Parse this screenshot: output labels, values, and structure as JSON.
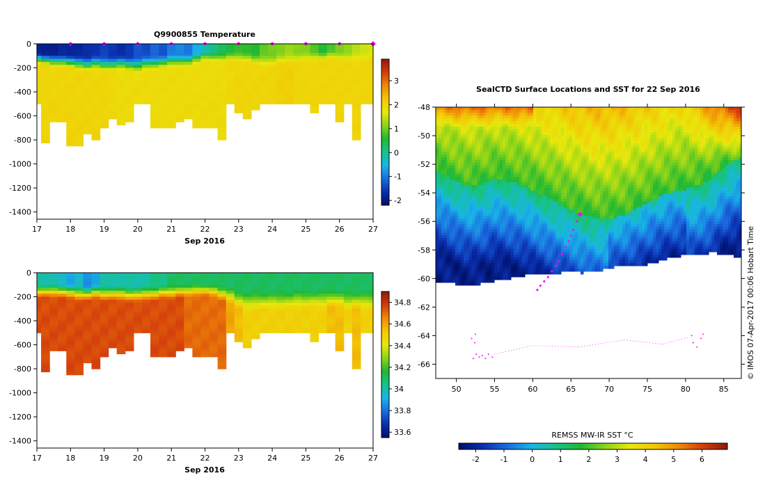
{
  "colors": {
    "temp_ramp": [
      "#000f66",
      "#0a2fae",
      "#1b6ee0",
      "#19b5e6",
      "#17c28a",
      "#22b832",
      "#8cd41a",
      "#e8e80c",
      "#f2c806",
      "#f08a08",
      "#d33c0c",
      "#8e1a0a"
    ],
    "marker": "#ff00ff",
    "land": "#ffffff"
  },
  "chart_data": [
    {
      "type": "heatmap",
      "id": "temperature",
      "title": "Q9900855  Temperature",
      "xlabel": "Sep 2016",
      "ylabel": "",
      "x_ticks": [
        "17",
        "18",
        "19",
        "20",
        "21",
        "22",
        "23",
        "24",
        "25",
        "26",
        "27"
      ],
      "xlim": [
        17,
        27
      ],
      "y_ticks": [
        "0",
        "-200",
        "-400",
        "-600",
        "-800",
        "-1000",
        "-1200",
        "-1400"
      ],
      "ylim": [
        -1460,
        0
      ],
      "colorbar_ticks": [
        "-2",
        "-1",
        "0",
        "1",
        "2",
        "3"
      ],
      "colorbar_range": [
        -2.2,
        3.9
      ],
      "profile_days": [
        17,
        17.25,
        17.5,
        17.75,
        18,
        18.25,
        18.5,
        18.75,
        19,
        19.25,
        19.5,
        19.75,
        20,
        20.25,
        20.5,
        20.75,
        21,
        21.25,
        21.5,
        21.75,
        22,
        22.25,
        22.5,
        22.75,
        23,
        23.25,
        23.5,
        23.75,
        24,
        24.25,
        24.5,
        24.75,
        25,
        25.25,
        25.5,
        25.75,
        26,
        26.25,
        26.5,
        26.75,
        27
      ],
      "max_depth_m": [
        500,
        820,
        640,
        640,
        840,
        840,
        730,
        800,
        690,
        610,
        660,
        640,
        500,
        500,
        700,
        700,
        680,
        650,
        620,
        680,
        680,
        680,
        800,
        500,
        570,
        610,
        550,
        500,
        500,
        500,
        500,
        500,
        500,
        570,
        500,
        500,
        650,
        500,
        800,
        500,
        500
      ],
      "surface_temp": [
        -1.9,
        -1.9,
        -1.9,
        -1.8,
        -1.8,
        -1.8,
        -1.7,
        -1.6,
        -1.5,
        -1.6,
        -1.7,
        -1.6,
        -1.3,
        -1.4,
        -1.2,
        -1.3,
        -1.0,
        -0.9,
        -1.0,
        -0.6,
        -0.2,
        0.1,
        0.3,
        0.5,
        0.7,
        0.6,
        0.6,
        0.9,
        1.0,
        1.1,
        1.2,
        1.1,
        1.1,
        0.8,
        0.6,
        0.8,
        1.0,
        1.2,
        1.4,
        1.5,
        1.6
      ],
      "deep_temp": [
        2.0,
        2.0,
        2.0,
        2.0,
        2.0,
        2.0,
        2.0,
        2.0,
        2.0,
        1.95,
        1.9,
        1.9,
        1.9,
        1.9,
        1.9,
        1.9,
        1.9,
        1.9,
        1.9,
        1.9,
        1.9,
        1.9,
        1.9,
        1.95,
        2.0,
        2.0,
        2.0,
        2.0,
        2.0,
        2.1,
        2.1,
        2.0,
        2.0,
        2.0,
        2.0,
        2.0,
        2.0,
        2.0,
        2.0,
        2.0,
        2.0
      ],
      "mixed_layer_depth_m": [
        130,
        140,
        150,
        150,
        160,
        170,
        180,
        170,
        180,
        180,
        170,
        180,
        190,
        170,
        170,
        160,
        150,
        150,
        150,
        130,
        110,
        120,
        120,
        110,
        120,
        120,
        140,
        150,
        150,
        140,
        130,
        120,
        120,
        110,
        110,
        100,
        110,
        120,
        120,
        110,
        100
      ],
      "markers_day": [
        18,
        19,
        20,
        21,
        22,
        23,
        24,
        25,
        26,
        27
      ]
    },
    {
      "type": "heatmap",
      "id": "salinity",
      "title": "",
      "xlabel": "Sep 2016",
      "ylabel": "",
      "x_ticks": [
        "17",
        "18",
        "19",
        "20",
        "21",
        "22",
        "23",
        "24",
        "25",
        "26",
        "27"
      ],
      "xlim": [
        17,
        27
      ],
      "y_ticks": [
        "0",
        "-200",
        "-400",
        "-600",
        "-800",
        "-1000",
        "-1200",
        "-1400"
      ],
      "ylim": [
        -1460,
        0
      ],
      "colorbar_ticks": [
        "33.6",
        "33.8",
        "34",
        "34.2",
        "34.4",
        "34.6",
        "34.8"
      ],
      "colorbar_range": [
        33.55,
        34.9
      ],
      "profile_days": [
        17,
        17.25,
        17.5,
        17.75,
        18,
        18.25,
        18.5,
        18.75,
        19,
        19.25,
        19.5,
        19.75,
        20,
        20.25,
        20.5,
        20.75,
        21,
        21.25,
        21.5,
        21.75,
        22,
        22.25,
        22.5,
        22.75,
        23,
        23.25,
        23.5,
        23.75,
        24,
        24.25,
        24.5,
        24.75,
        25,
        25.25,
        25.5,
        25.75,
        26,
        26.25,
        26.5,
        26.75,
        27
      ],
      "max_depth_m": [
        500,
        820,
        640,
        640,
        840,
        840,
        730,
        800,
        690,
        610,
        660,
        640,
        500,
        500,
        700,
        700,
        680,
        650,
        620,
        680,
        680,
        680,
        800,
        500,
        570,
        610,
        550,
        500,
        500,
        500,
        500,
        500,
        500,
        570,
        500,
        500,
        650,
        500,
        800,
        500,
        500
      ],
      "surface_sal": [
        34.0,
        34.0,
        34.0,
        33.95,
        33.9,
        33.95,
        33.85,
        33.9,
        34.0,
        34.0,
        34.0,
        34.0,
        34.0,
        34.0,
        34.05,
        34.05,
        34.1,
        34.1,
        34.1,
        34.1,
        34.1,
        34.1,
        34.1,
        34.1,
        34.1,
        34.1,
        34.1,
        34.1,
        34.1,
        34.1,
        34.1,
        34.1,
        34.1,
        34.1,
        34.1,
        34.1,
        34.1,
        34.1,
        34.1,
        34.1,
        34.1
      ],
      "deep_sal": [
        34.75,
        34.75,
        34.75,
        34.75,
        34.75,
        34.75,
        34.75,
        34.75,
        34.75,
        34.75,
        34.75,
        34.75,
        34.75,
        34.75,
        34.75,
        34.75,
        34.75,
        34.75,
        34.7,
        34.7,
        34.7,
        34.7,
        34.7,
        34.6,
        34.55,
        34.5,
        34.5,
        34.5,
        34.5,
        34.5,
        34.5,
        34.5,
        34.5,
        34.5,
        34.5,
        34.55,
        34.55,
        34.5,
        34.55,
        34.5,
        34.5
      ],
      "halocline_depth_m": [
        160,
        160,
        160,
        160,
        170,
        180,
        180,
        170,
        180,
        180,
        180,
        190,
        190,
        180,
        180,
        170,
        170,
        160,
        160,
        150,
        150,
        160,
        180,
        200,
        230,
        250,
        240,
        240,
        240,
        240,
        240,
        230,
        230,
        230,
        230,
        220,
        230,
        240,
        240,
        240,
        240
      ]
    },
    {
      "type": "heatmap",
      "id": "sst_map",
      "title": "SealCTD Surface Locations and SST for 22 Sep 2016",
      "xlabel": "",
      "ylabel": "",
      "x_ticks": [
        "50",
        "55",
        "60",
        "65",
        "70",
        "75",
        "80",
        "85"
      ],
      "xlim": [
        47.3,
        87.3
      ],
      "y_ticks": [
        "-48",
        "-50",
        "-52",
        "-54",
        "-56",
        "-58",
        "-60",
        "-62",
        "-64",
        "-66"
      ],
      "ylim": [
        -67,
        -48
      ],
      "colorbar_label": "REMSS MW-IR SST °C",
      "colorbar_ticks": [
        "-2",
        "-1",
        "0",
        "1",
        "2",
        "3",
        "4",
        "5",
        "6"
      ],
      "colorbar_range": [
        -2.6,
        6.9
      ],
      "sst_front_lat": [
        -52.5,
        -53.0,
        -53.5,
        -53.5,
        -53.0,
        -53.2,
        -53.5,
        -54.0,
        -54.5,
        -55.0,
        -55.5,
        -55.8,
        -55.8,
        -55.5,
        -55.0,
        -54.5,
        -54.0,
        -53.8,
        -53.5,
        -53.0,
        -52.0,
        -51.5
      ],
      "ice_edge_lat": [
        -60.2,
        -60.3,
        -60.5,
        -60.4,
        -60.2,
        -60.0,
        -59.8,
        -59.6,
        -59.7,
        -59.5,
        -59.6,
        -59.5,
        -59.3,
        -59.0,
        -59.1,
        -58.9,
        -58.6,
        -58.4,
        -58.3,
        -58.2,
        -58.3,
        -58.6
      ],
      "track_lon": [
        66.2,
        65.8,
        65.3,
        65.0,
        64.7,
        64.3,
        63.8,
        63.4,
        63.0,
        62.5,
        62.0,
        61.5,
        61.0,
        60.6
      ],
      "track_lat": [
        -55.5,
        -56.0,
        -56.6,
        -57.0,
        -57.4,
        -57.8,
        -58.3,
        -58.8,
        -59.1,
        -59.5,
        -59.9,
        -60.2,
        -60.5,
        -60.8
      ],
      "grounded_lon": [
        52.2,
        52.6,
        53.0,
        53.4,
        53.8,
        54.2,
        54.7,
        52.4,
        52.0,
        52.5,
        81.0,
        81.5,
        82.0,
        82.3,
        80.8
      ],
      "grounded_lat": [
        -65.6,
        -65.3,
        -65.5,
        -65.4,
        -65.6,
        -65.3,
        -65.5,
        -64.5,
        -64.2,
        -63.9,
        -64.5,
        -64.8,
        -64.2,
        -63.9,
        -64.0
      ],
      "annotation": "© IMOS 07-Apr-2017 00:06 Hobart Time"
    }
  ]
}
